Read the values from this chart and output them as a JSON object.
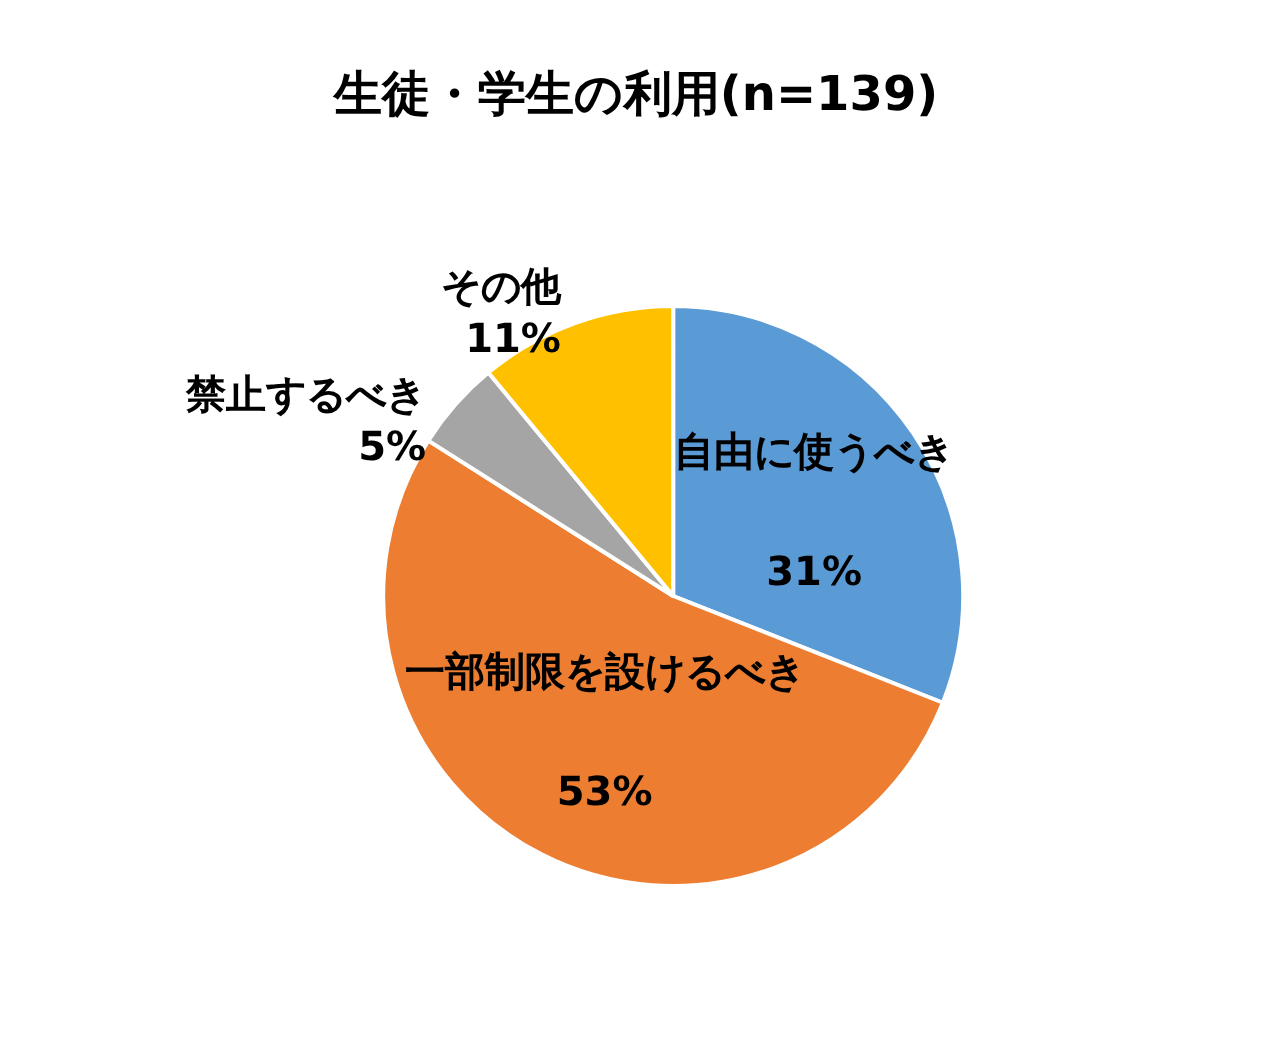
{
  "chart_data": {
    "type": "pie",
    "title": "生徒・学生の利用(n=139)",
    "categories": [
      "自由に使うべき",
      "一部制限を設けるべき",
      "禁止するべき",
      "その他"
    ],
    "values": [
      31,
      53,
      5,
      11
    ],
    "colors": [
      "#5b9bd5",
      "#ed7d31",
      "#a5a5a5",
      "#ffc000"
    ],
    "value_labels": [
      "31%",
      "53%",
      "5%",
      "11%"
    ],
    "legend": false
  }
}
